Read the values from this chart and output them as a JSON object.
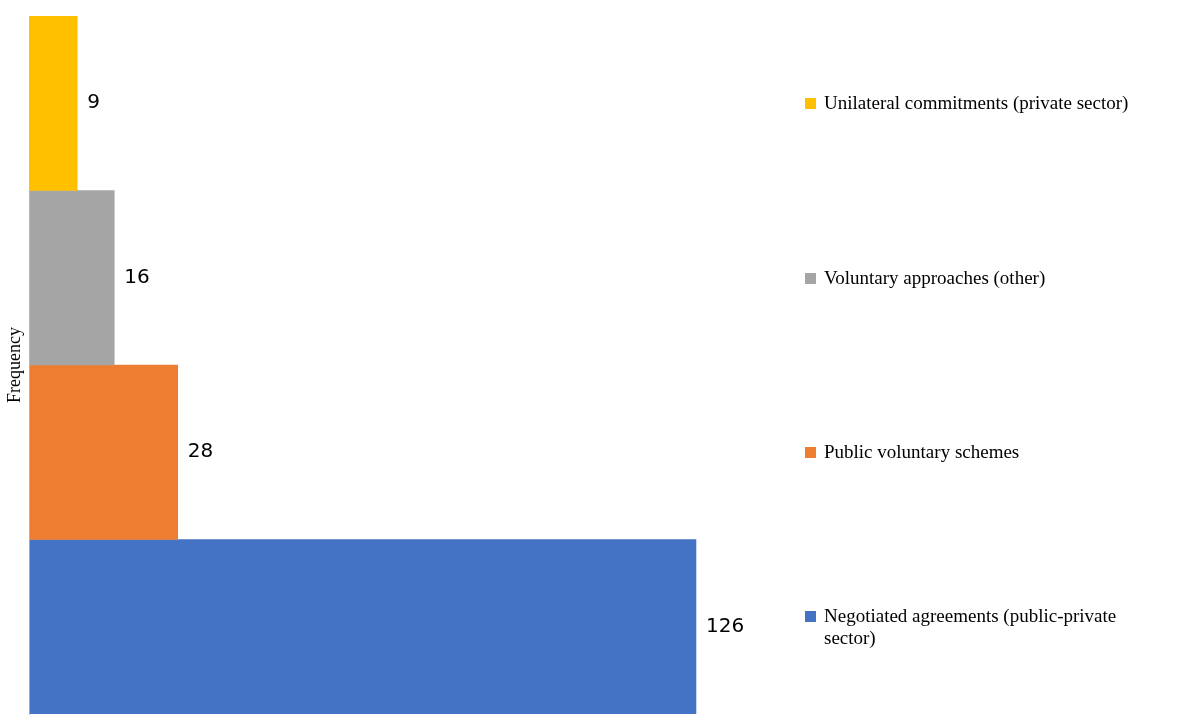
{
  "chart_data": {
    "type": "bar",
    "orientation": "horizontal",
    "stacked": true,
    "ylabel": "Frequency",
    "categories": [
      null,
      null,
      null,
      null
    ],
    "series": [
      {
        "name": "Unilateral commitments (private sector)",
        "color": "#ffc000",
        "values": [
          9,
          null,
          null,
          null
        ]
      },
      {
        "name": "Voluntary approaches (other)",
        "color": "#a5a5a5",
        "values": [
          null,
          16,
          null,
          null
        ]
      },
      {
        "name": "Public voluntary schemes",
        "color": "#ed7d31",
        "values": [
          null,
          null,
          28,
          null
        ]
      },
      {
        "name": "Negotiated agreements (public-private sector)",
        "color": "#4472c4",
        "values": [
          null,
          null,
          null,
          126
        ]
      }
    ],
    "data_labels": true,
    "legend": "right"
  }
}
